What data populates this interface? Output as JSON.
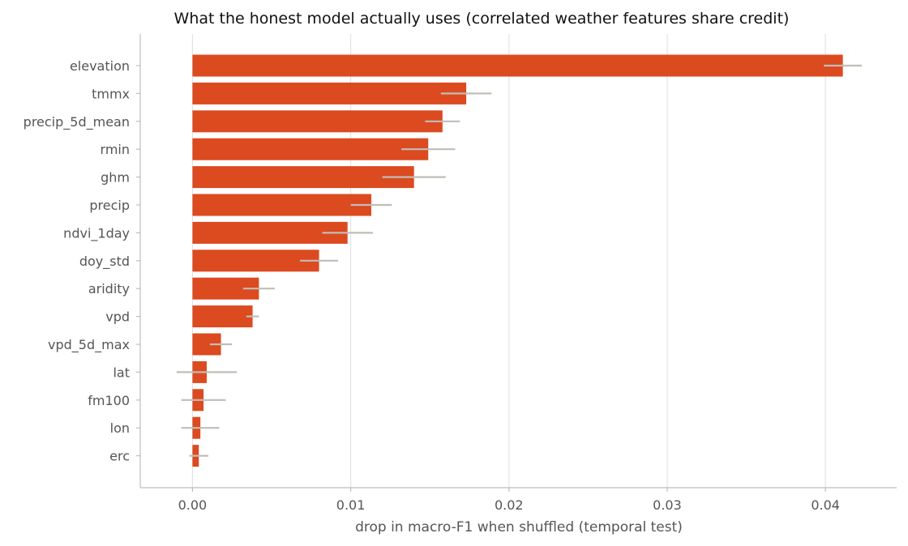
{
  "chart_data": {
    "type": "bar",
    "orientation": "horizontal",
    "title": "What the honest model actually uses (correlated weather features share credit)",
    "xlabel": "drop in macro-F1 when shuffled (temporal test)",
    "ylabel": "",
    "xlim": [
      -0.0033,
      0.0445
    ],
    "xticks": [
      0.0,
      0.01,
      0.02,
      0.03,
      0.04
    ],
    "xtick_labels": [
      "0.00",
      "0.01",
      "0.02",
      "0.03",
      "0.04"
    ],
    "grid": "vertical",
    "bar_color": "#dc4a20",
    "error_color": "#c0bdb6",
    "categories": [
      "elevation",
      "tmmx",
      "precip_5d_mean",
      "rmin",
      "ghm",
      "precip",
      "ndvi_1day",
      "doy_std",
      "aridity",
      "vpd",
      "vpd_5d_max",
      "lat",
      "fm100",
      "lon",
      "erc"
    ],
    "values": [
      0.0411,
      0.0173,
      0.0158,
      0.0149,
      0.014,
      0.0113,
      0.0098,
      0.008,
      0.0042,
      0.0038,
      0.0018,
      0.0009,
      0.0007,
      0.0005,
      0.0004
    ],
    "errors": [
      0.0012,
      0.0016,
      0.0011,
      0.0017,
      0.002,
      0.0013,
      0.0016,
      0.0012,
      0.001,
      0.0004,
      0.0007,
      0.0019,
      0.0014,
      0.0012,
      0.0006
    ]
  }
}
